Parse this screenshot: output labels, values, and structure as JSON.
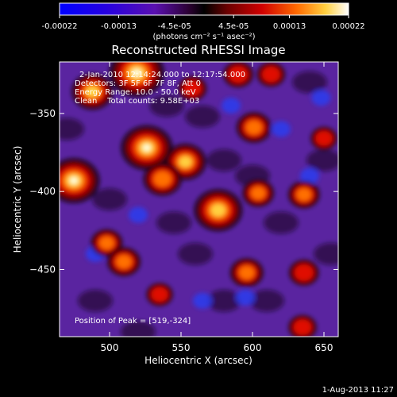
{
  "chart_data": {
    "type": "heatmap",
    "title": "Reconstructed RHESSI Image",
    "xlabel": "Heliocentric X (arcsec)",
    "ylabel": "Heliocentric Y (arcsec)",
    "xlim": [
      465,
      660
    ],
    "ylim": [
      -493,
      -317
    ],
    "x_ticks": [
      500,
      550,
      600,
      650
    ],
    "y_ticks": [
      -350,
      -400,
      -450
    ],
    "x_tick_labels": [
      "500",
      "550",
      "600",
      "650"
    ],
    "y_tick_labels": [
      "−350",
      "−400",
      "−450"
    ],
    "colorbar": {
      "range": [
        -0.00022,
        0.00022
      ],
      "tick_labels": [
        "-0.00022",
        "-0.00013",
        "-4.5e-05",
        "4.5e-05",
        "0.00013",
        "0.00022"
      ],
      "unit_label": "(photons cm⁻² s⁻¹ asec⁻²)"
    },
    "annotations": {
      "time_range": "2-Jan-2010 12:14:24.000 to 12:17:54.000",
      "detectors": "Detectors: 3F 5F 6F 7F 8F, Att 0",
      "energy": "Energy Range: 10.0 - 50.0 keV",
      "clean": "Clean    Total counts: 9.58E+03",
      "peak": "Position of Peak = [519,-324]"
    },
    "peaks": [
      {
        "x": 519,
        "y": -324,
        "value": 0.00022
      },
      {
        "x": 526,
        "y": -372,
        "value": 0.0002
      },
      {
        "x": 475,
        "y": -393,
        "value": 0.0002
      },
      {
        "x": 576,
        "y": -412,
        "value": 0.00018
      },
      {
        "x": 553,
        "y": -381,
        "value": 0.00014
      },
      {
        "x": 537,
        "y": -392,
        "value": 0.00012
      },
      {
        "x": 601,
        "y": -359,
        "value": 0.0001
      },
      {
        "x": 488,
        "y": -336,
        "value": 0.00014
      },
      {
        "x": 498,
        "y": -433,
        "value": 8e-05
      },
      {
        "x": 510,
        "y": -445,
        "value": 9e-05
      },
      {
        "x": 596,
        "y": -452,
        "value": 9e-05
      },
      {
        "x": 636,
        "y": -402,
        "value": 8e-05
      },
      {
        "x": 636,
        "y": -452,
        "value": 7e-05
      },
      {
        "x": 604,
        "y": -401,
        "value": 8e-05
      },
      {
        "x": 535,
        "y": -466,
        "value": 5e-05
      },
      {
        "x": 635,
        "y": -487,
        "value": 6e-05
      },
      {
        "x": 613,
        "y": -325,
        "value": 6e-05
      },
      {
        "x": 650,
        "y": -366,
        "value": 5e-05
      },
      {
        "x": 590,
        "y": -325,
        "value": 7e-05
      },
      {
        "x": 558,
        "y": -334,
        "value": 6e-05
      }
    ]
  },
  "footer": {
    "timestamp": "1-Aug-2013 11:27"
  }
}
